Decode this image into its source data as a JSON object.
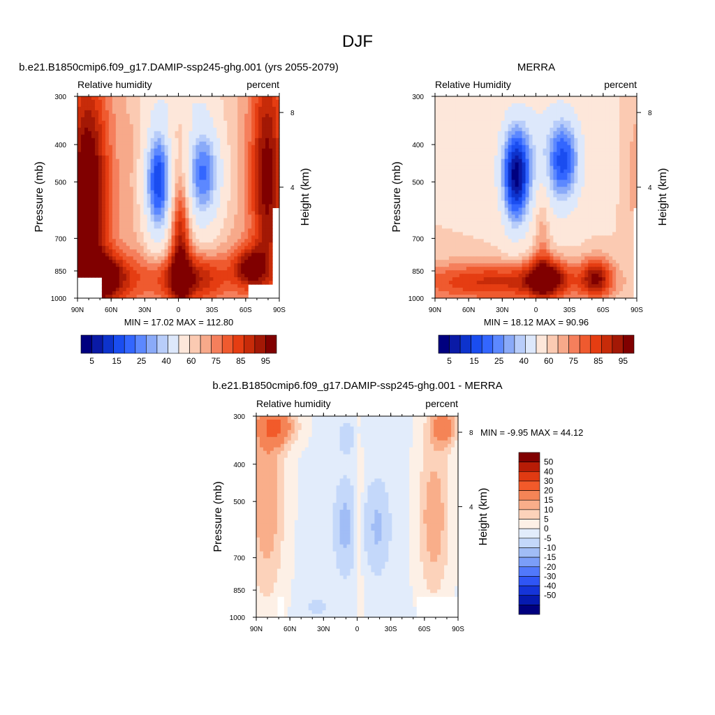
{
  "figure": {
    "title": "DJF"
  },
  "chart_data": [
    {
      "type": "contour",
      "panel": "top-left",
      "title": "b.e21.B1850cmip6.f09_g17.DAMIP-ssp245-ghg.001 (yrs 2055-2079)",
      "left_label": "Relative humidity",
      "right_label": "percent",
      "ylabel": "Pressure (mb)",
      "ylabel_right": "Height (km)",
      "x_ticks": [
        "90N",
        "60N",
        "30N",
        "0",
        "30S",
        "60S",
        "90S"
      ],
      "y_ticks": [
        "300",
        "400",
        "500",
        "700",
        "850",
        "1000"
      ],
      "right_ticks": [
        "8",
        "4"
      ],
      "min_max": "MIN =  17.02  MAX = 112.80",
      "colorbar_labels": [
        "5",
        "15",
        "25",
        "40",
        "60",
        "75",
        "85",
        "95"
      ],
      "colorbar_orientation": "horizontal"
    },
    {
      "type": "contour",
      "panel": "top-right",
      "title": "MERRA",
      "left_label": "Relative Humidity",
      "right_label": "percent",
      "ylabel": "Pressure (mb)",
      "ylabel_right": "Height (km)",
      "x_ticks": [
        "90N",
        "60N",
        "30N",
        "0",
        "30S",
        "60S",
        "90S"
      ],
      "y_ticks": [
        "300",
        "400",
        "500",
        "700",
        "850",
        "1000"
      ],
      "right_ticks": [
        "8",
        "4"
      ],
      "min_max": "MIN =  18.12  MAX =  90.96",
      "colorbar_labels": [
        "5",
        "15",
        "25",
        "40",
        "60",
        "75",
        "85",
        "95"
      ],
      "colorbar_orientation": "horizontal"
    },
    {
      "type": "contour",
      "panel": "bottom",
      "title": "b.e21.B1850cmip6.f09_g17.DAMIP-ssp245-ghg.001 - MERRA",
      "left_label": "Relative humidity",
      "right_label": "percent",
      "ylabel": "Pressure (mb)",
      "ylabel_right": "Height (km)",
      "x_ticks": [
        "90N",
        "60N",
        "30N",
        "0",
        "30S",
        "60S",
        "90S"
      ],
      "y_ticks": [
        "300",
        "400",
        "500",
        "700",
        "850",
        "1000"
      ],
      "right_ticks": [
        "8",
        "4"
      ],
      "min_max": "MIN =  -9.95  MAX =  44.12",
      "colorbar_labels": [
        "50",
        "40",
        "30",
        "20",
        "15",
        "10",
        "5",
        "0",
        "-5",
        "-10",
        "-15",
        "-20",
        "-30",
        "-40",
        "-50"
      ],
      "colorbar_orientation": "vertical"
    }
  ],
  "colors": {
    "rh_scale": [
      "#00007f",
      "#0a1aa6",
      "#0d33cc",
      "#1a4df0",
      "#3366ff",
      "#5c88ff",
      "#8aaaf8",
      "#b8cdfa",
      "#dde8fb",
      "#fde7da",
      "#fbcab2",
      "#f7a98a",
      "#f57f5c",
      "#ef5a2f",
      "#e53d12",
      "#c72b09",
      "#a31805",
      "#800000"
    ],
    "diff_scale": [
      "#800000",
      "#b71c06",
      "#e03a12",
      "#f25a2a",
      "#f58456",
      "#f9ae8a",
      "#fcd2ba",
      "#fdf0e6",
      "#e2ecfb",
      "#c4d8fa",
      "#a1bdf6",
      "#7b9ef8",
      "#5178fb",
      "#2f55f5",
      "#1534d9",
      "#061ab0",
      "#00007f"
    ]
  }
}
